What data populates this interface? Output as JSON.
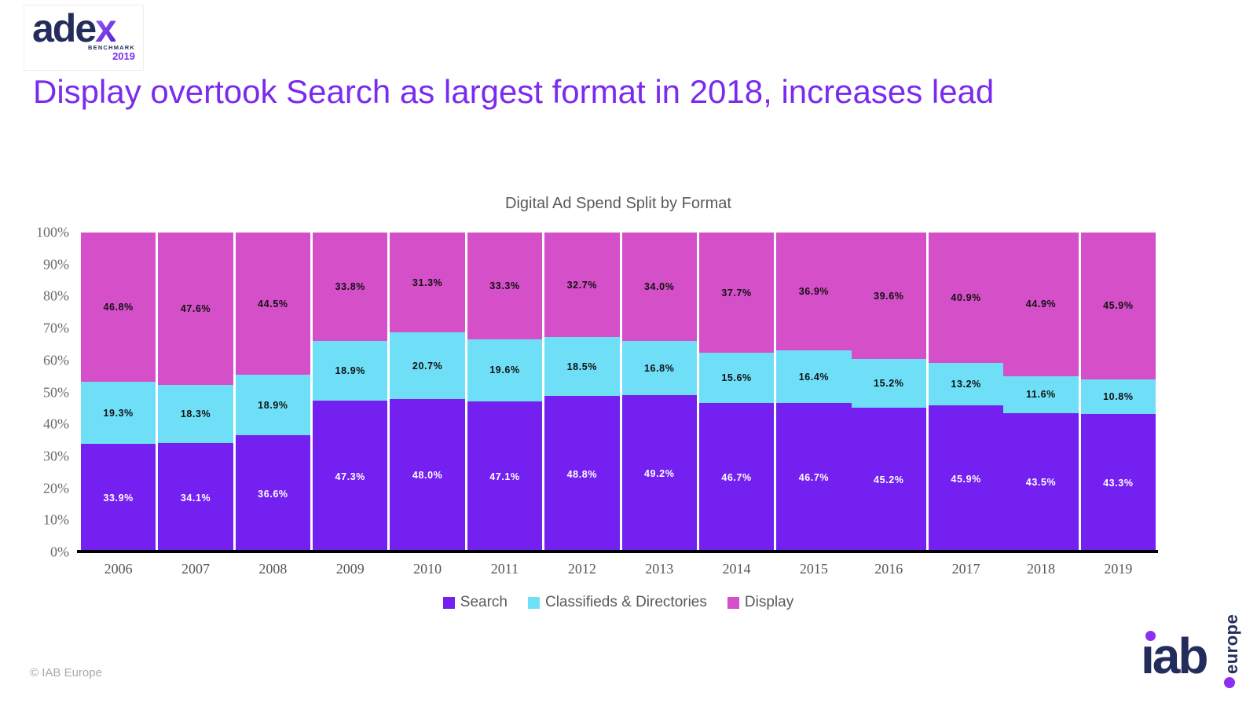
{
  "logo": {
    "brand_prefix": "ade",
    "brand_suffix": "x",
    "benchmark": "BENCHMARK",
    "year": "2019"
  },
  "heading": {
    "text": "Display overtook Search as largest format in 2018, increases lead"
  },
  "chart_data": {
    "type": "bar",
    "stacked": true,
    "percent": true,
    "title": "Digital Ad Spend Split by Format",
    "categories": [
      "2006",
      "2007",
      "2008",
      "2009",
      "2010",
      "2011",
      "2012",
      "2013",
      "2014",
      "2015",
      "2016",
      "2017",
      "2018",
      "2019"
    ],
    "series": [
      {
        "name": "Search",
        "color": "#7420F0",
        "label_color": "#ffffff",
        "values": [
          33.9,
          34.1,
          36.6,
          47.3,
          48.0,
          47.1,
          48.8,
          49.2,
          46.7,
          46.7,
          45.2,
          45.9,
          43.5,
          43.3
        ]
      },
      {
        "name": "Classifieds & Directories",
        "color": "#6FDFF8",
        "label_color": "#111111",
        "values": [
          19.3,
          18.3,
          18.9,
          18.9,
          20.7,
          19.6,
          18.5,
          16.8,
          15.6,
          16.4,
          15.2,
          13.2,
          11.6,
          10.8
        ]
      },
      {
        "name": "Display",
        "color": "#D44FC8",
        "label_color": "#111111",
        "values": [
          46.8,
          47.6,
          44.5,
          33.8,
          31.3,
          33.3,
          32.7,
          34.0,
          37.7,
          36.9,
          39.6,
          40.9,
          44.9,
          45.9
        ]
      }
    ],
    "ylim": [
      0,
      100
    ],
    "y_ticks": [
      "0%",
      "10%",
      "20%",
      "30%",
      "40%",
      "50%",
      "60%",
      "70%",
      "80%",
      "90%",
      "100%"
    ],
    "legend_position": "bottom",
    "grid": false
  },
  "footer": {
    "copyright": "© IAB Europe",
    "iab_logo": {
      "text": "iab",
      "period": ".",
      "vertical_text": "europe"
    }
  }
}
